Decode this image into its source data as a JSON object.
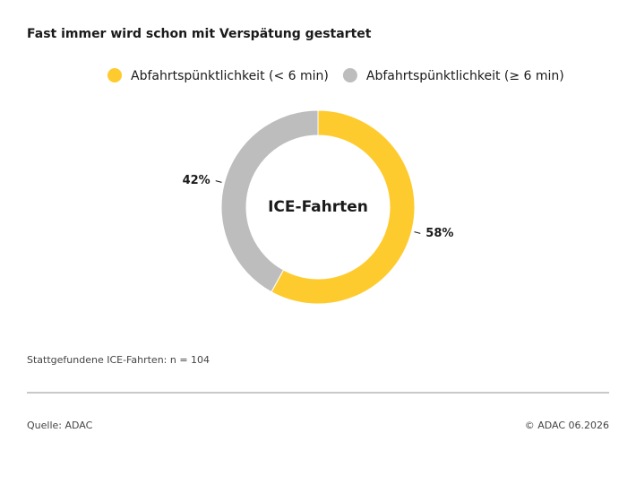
{
  "chart_data": {
    "type": "pie",
    "title": "Fast immer wird schon mit Verspätung gestartet",
    "center_label": "ICE-Fahrten",
    "categories": [
      "Abfahrtspünktlichkeit (< 6 min)",
      "Abfahrtspünktlichkeit (≥ 6 min)"
    ],
    "values": [
      58,
      42
    ],
    "value_labels": [
      "58%",
      "42%"
    ],
    "colors": [
      "#fecb2f",
      "#bdbdbd"
    ],
    "note": "Stattgefundene ICE-Fahrten: n = 104",
    "source": "Quelle: ADAC",
    "credit": "© ADAC 06.2026"
  }
}
